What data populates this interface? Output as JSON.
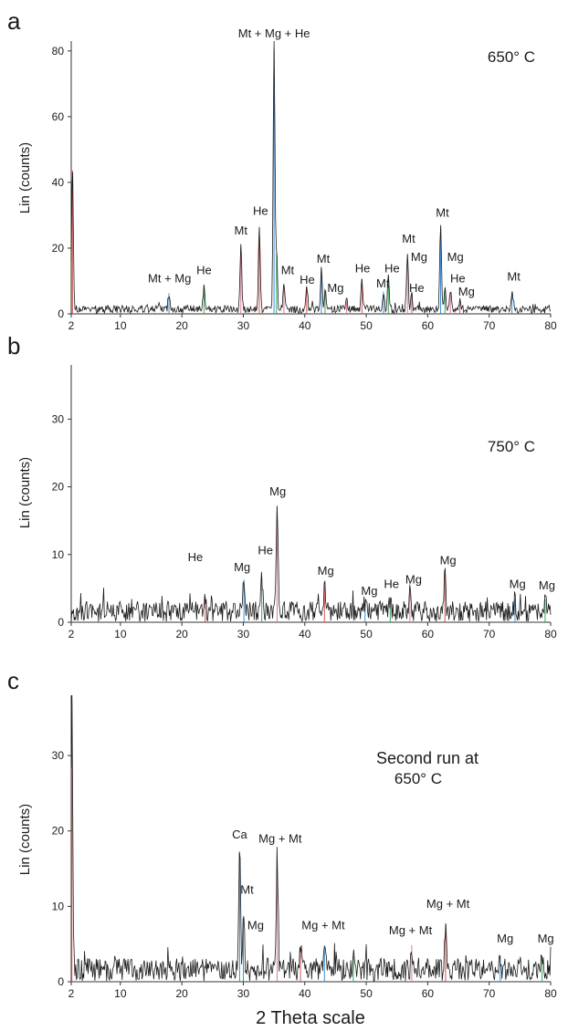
{
  "xlabel": "2 Theta scale",
  "colors": {
    "trace": "#1a1a1a",
    "axis": "#333333",
    "stick_red": "#d9534f",
    "stick_blue": "#3a8fd9",
    "stick_green": "#3aa55c",
    "stick_pink": "#e07aa0"
  },
  "chart_data": [
    {
      "type": "line",
      "panel_letter": "a",
      "annotation": "650° C",
      "ylabel": "Lin (counts)",
      "xlim": [
        2,
        80
      ],
      "ylim": [
        0,
        83
      ],
      "xticks": [
        2,
        10,
        20,
        30,
        40,
        50,
        60,
        70,
        80
      ],
      "yticks": [
        0,
        20,
        40,
        60,
        80
      ],
      "baseline": {
        "level": 1.4,
        "amp": 1.2
      },
      "peaks": [
        {
          "x": 2.2,
          "y": 45
        },
        {
          "x": 17.9,
          "y": 6.5
        },
        {
          "x": 23.6,
          "y": 9
        },
        {
          "x": 29.6,
          "y": 21
        },
        {
          "x": 32.6,
          "y": 27
        },
        {
          "x": 35.0,
          "y": 83
        },
        {
          "x": 35.4,
          "y": 19
        },
        {
          "x": 36.6,
          "y": 9.5
        },
        {
          "x": 40.3,
          "y": 8.5
        },
        {
          "x": 42.7,
          "y": 14
        },
        {
          "x": 43.3,
          "y": 7
        },
        {
          "x": 46.8,
          "y": 4
        },
        {
          "x": 49.3,
          "y": 11
        },
        {
          "x": 52.8,
          "y": 7
        },
        {
          "x": 53.6,
          "y": 12
        },
        {
          "x": 56.7,
          "y": 19
        },
        {
          "x": 57.4,
          "y": 6
        },
        {
          "x": 62.1,
          "y": 27
        },
        {
          "x": 62.8,
          "y": 8
        },
        {
          "x": 63.7,
          "y": 7
        },
        {
          "x": 65.2,
          "y": 4
        },
        {
          "x": 73.7,
          "y": 7
        }
      ],
      "labels": [
        {
          "text": "Mt + Mg + He",
          "x": 35.0,
          "y": 83
        },
        {
          "text": "Mt + Mg",
          "x": 18.0,
          "y": 8.5
        },
        {
          "text": "He",
          "x": 23.6,
          "y": 11
        },
        {
          "text": "Mt",
          "x": 29.6,
          "y": 23
        },
        {
          "text": "He",
          "x": 32.8,
          "y": 29
        },
        {
          "text": "Mt",
          "x": 37.2,
          "y": 11
        },
        {
          "text": "He",
          "x": 40.4,
          "y": 8
        },
        {
          "text": "Mt",
          "x": 43.0,
          "y": 14.5
        },
        {
          "text": "Mg",
          "x": 45.0,
          "y": 5.5
        },
        {
          "text": "He",
          "x": 49.4,
          "y": 11.5
        },
        {
          "text": "Mt",
          "x": 52.7,
          "y": 7
        },
        {
          "text": "He",
          "x": 54.2,
          "y": 11.5
        },
        {
          "text": "Mt",
          "x": 56.9,
          "y": 20.5
        },
        {
          "text": "Mg",
          "x": 58.6,
          "y": 15
        },
        {
          "text": "He",
          "x": 58.2,
          "y": 5.5
        },
        {
          "text": "Mt",
          "x": 62.4,
          "y": 28.5
        },
        {
          "text": "Mg",
          "x": 64.5,
          "y": 15
        },
        {
          "text": "He",
          "x": 64.9,
          "y": 8.5
        },
        {
          "text": "Mg",
          "x": 66.3,
          "y": 4.5
        },
        {
          "text": "Mt",
          "x": 74.0,
          "y": 9
        }
      ]
    },
    {
      "type": "line",
      "panel_letter": "b",
      "annotation": "750° C",
      "ylabel": "Lin (counts)",
      "xlim": [
        2,
        80
      ],
      "ylim": [
        0,
        38
      ],
      "xticks": [
        2,
        10,
        20,
        30,
        40,
        50,
        60,
        70,
        80
      ],
      "yticks": [
        0,
        10,
        20,
        30
      ],
      "baseline": {
        "level": 1.6,
        "amp": 1.5
      },
      "peaks": [
        {
          "x": 23.8,
          "y": 4
        },
        {
          "x": 30.1,
          "y": 6.5
        },
        {
          "x": 33.0,
          "y": 7
        },
        {
          "x": 35.5,
          "y": 17.5
        },
        {
          "x": 43.2,
          "y": 5.5
        },
        {
          "x": 49.8,
          "y": 3
        },
        {
          "x": 53.9,
          "y": 3.5
        },
        {
          "x": 57.1,
          "y": 6
        },
        {
          "x": 62.8,
          "y": 7.5
        },
        {
          "x": 74.2,
          "y": 3.5
        },
        {
          "x": 79.1,
          "y": 3.5
        }
      ],
      "labels": [
        {
          "text": "He",
          "x": 22.2,
          "y": 8.5
        },
        {
          "text": "Mg",
          "x": 29.8,
          "y": 7
        },
        {
          "text": "He",
          "x": 33.6,
          "y": 9.5
        },
        {
          "text": "Mg",
          "x": 35.6,
          "y": 18.2
        },
        {
          "text": "Mg",
          "x": 43.4,
          "y": 6.5
        },
        {
          "text": "Mg",
          "x": 50.5,
          "y": 3.5
        },
        {
          "text": "He",
          "x": 54.1,
          "y": 4.5
        },
        {
          "text": "Mg",
          "x": 57.7,
          "y": 5.2
        },
        {
          "text": "Mg",
          "x": 63.3,
          "y": 8
        },
        {
          "text": "Mg",
          "x": 74.6,
          "y": 4.5
        },
        {
          "text": "Mg",
          "x": 79.4,
          "y": 4.3
        }
      ]
    },
    {
      "type": "line",
      "panel_letter": "c",
      "annotation_line1": "Second run at",
      "annotation_line2": "650° C",
      "ylabel": "Lin (counts)",
      "xlim": [
        2,
        80
      ],
      "ylim": [
        0,
        38
      ],
      "xticks": [
        2,
        10,
        20,
        30,
        40,
        50,
        60,
        70,
        80
      ],
      "yticks": [
        0,
        10,
        20,
        30
      ],
      "baseline": {
        "level": 1.6,
        "amp": 1.5
      },
      "peaks": [
        {
          "x": 2.1,
          "y": 38
        },
        {
          "x": 29.4,
          "y": 17.5
        },
        {
          "x": 30.0,
          "y": 9
        },
        {
          "x": 35.5,
          "y": 17
        },
        {
          "x": 39.3,
          "y": 4.5
        },
        {
          "x": 43.2,
          "y": 5
        },
        {
          "x": 47.9,
          "y": 3.5
        },
        {
          "x": 57.4,
          "y": 5
        },
        {
          "x": 62.9,
          "y": 8
        },
        {
          "x": 71.8,
          "y": 3.5
        },
        {
          "x": 78.6,
          "y": 3.5
        }
      ],
      "labels": [
        {
          "text": "Ca",
          "x": 29.4,
          "y": 18.5
        },
        {
          "text": "Mg + Mt",
          "x": 36.0,
          "y": 18
        },
        {
          "text": "Mt",
          "x": 30.6,
          "y": 11.2
        },
        {
          "text": "Mg",
          "x": 32.0,
          "y": 6.5
        },
        {
          "text": "Mg + Mt",
          "x": 43.0,
          "y": 6.5
        },
        {
          "text": "Mg + Mt",
          "x": 57.2,
          "y": 5.8
        },
        {
          "text": "Mg + Mt",
          "x": 63.3,
          "y": 9.3
        },
        {
          "text": "Mg",
          "x": 72.6,
          "y": 4.7
        },
        {
          "text": "Mg",
          "x": 79.2,
          "y": 4.7
        }
      ]
    }
  ]
}
